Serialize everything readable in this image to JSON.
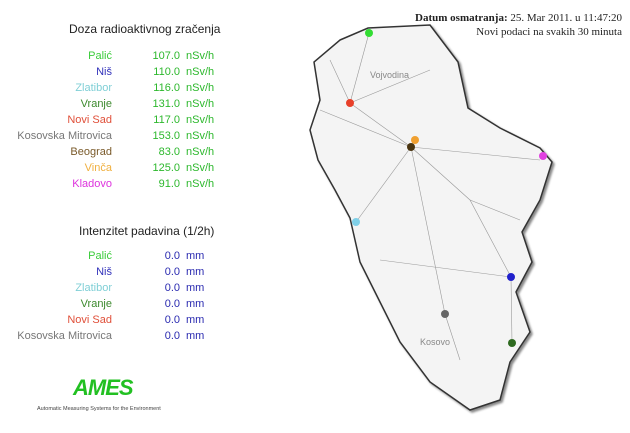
{
  "radiation": {
    "title": "Doza radioaktivnog zračenja",
    "unit": "nSv/h",
    "value_color": "#2db82d",
    "rows": [
      {
        "name": "Palić",
        "value": "107.0",
        "color": "#3ccc3c"
      },
      {
        "name": "Niš",
        "value": "110.0",
        "color": "#3333bb"
      },
      {
        "name": "Zlatibor",
        "value": "116.0",
        "color": "#7fcfd6"
      },
      {
        "name": "Vranje",
        "value": "131.0",
        "color": "#3d8a2e"
      },
      {
        "name": "Novi Sad",
        "value": "117.0",
        "color": "#e0503a"
      },
      {
        "name": "Kosovska Mitrovica",
        "value": "153.0",
        "color": "#777777"
      },
      {
        "name": "Beograd",
        "value": "83.0",
        "color": "#7a5a2a"
      },
      {
        "name": "Vinča",
        "value": "125.0",
        "color": "#f0b040"
      },
      {
        "name": "Kladovo",
        "value": "91.0",
        "color": "#dd33dd"
      }
    ]
  },
  "rain": {
    "title": "Intenzitet padavina (1/2h)",
    "unit": "mm",
    "value_color": "#2a2ab0",
    "rows": [
      {
        "name": "Palić",
        "value": "0.0",
        "color": "#3ccc3c"
      },
      {
        "name": "Niš",
        "value": "0.0",
        "color": "#3333bb"
      },
      {
        "name": "Zlatibor",
        "value": "0.0",
        "color": "#7fcfd6"
      },
      {
        "name": "Vranje",
        "value": "0.0",
        "color": "#3d8a2e"
      },
      {
        "name": "Novi Sad",
        "value": "0.0",
        "color": "#e0503a"
      },
      {
        "name": "Kosovska Mitrovica",
        "value": "0.0",
        "color": "#777777"
      }
    ]
  },
  "header": {
    "date_label": "Datum osmatranja:",
    "date_value": "25. Mar 2011. u 11:47:20",
    "refresh_note": "Novi podaci na svakih 30 minuta"
  },
  "logo": {
    "text": "AMES",
    "subtitle": "Automatic Measuring Systems for the Environment"
  },
  "map": {
    "region_label": "Vojvodina",
    "kosovo_label": "Kosovo",
    "stations": [
      {
        "name": "Palić",
        "color": "#33dd33"
      },
      {
        "name": "Novi Sad",
        "color": "#e8402a"
      },
      {
        "name": "Vinča",
        "color": "#f0a030"
      },
      {
        "name": "Beograd",
        "color": "#4a3510"
      },
      {
        "name": "Kladovo",
        "color": "#e040e0"
      },
      {
        "name": "Zlatibor",
        "color": "#80d0e8"
      },
      {
        "name": "Niš",
        "color": "#2020cc"
      },
      {
        "name": "Vranje",
        "color": "#2e6a20"
      },
      {
        "name": "Kosovska Mitrovica",
        "color": "#666666"
      }
    ]
  }
}
